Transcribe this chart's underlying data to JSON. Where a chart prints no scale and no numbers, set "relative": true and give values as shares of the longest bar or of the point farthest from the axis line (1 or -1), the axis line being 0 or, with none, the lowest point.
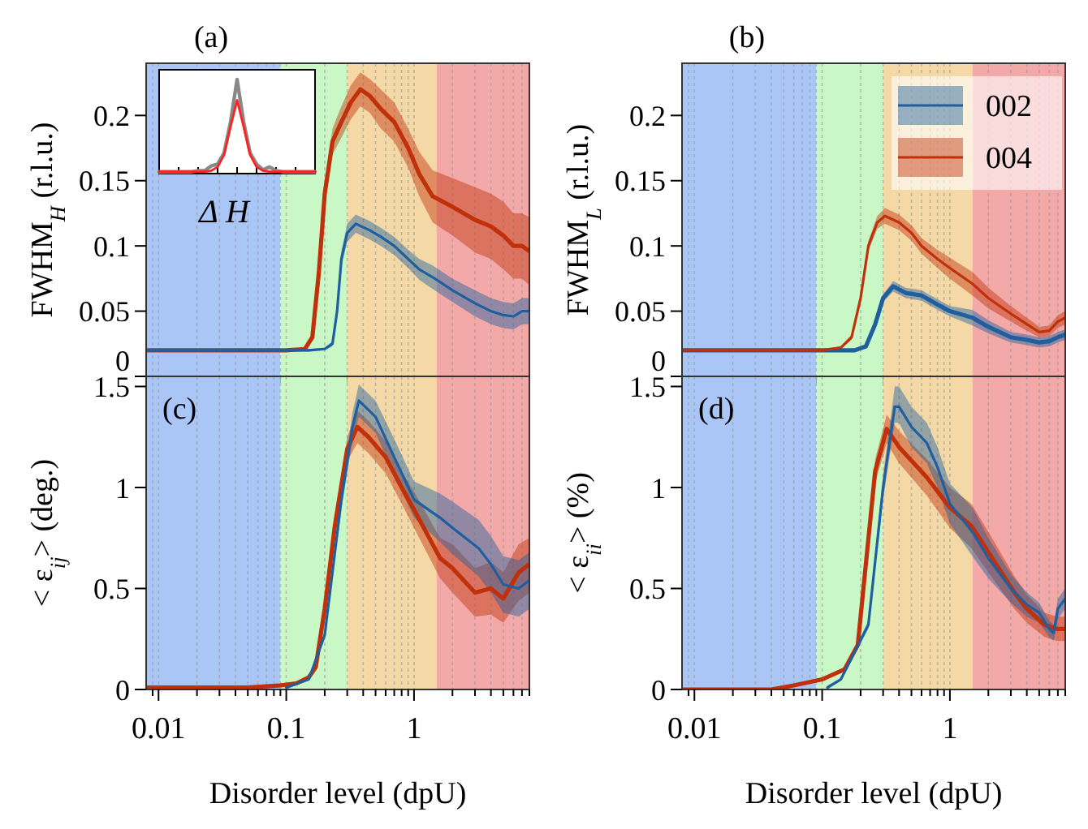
{
  "chart_data": [
    {
      "type": "line",
      "title": "(a)",
      "ylabel": "FWHM$_{H}$ (r.l.u.)",
      "xlim": [
        0.008,
        8
      ],
      "ylim": [
        0,
        0.24
      ],
      "log": "x",
      "grid": "x",
      "legend": false,
      "tick_labels": "y",
      "xticks": [
        {
          "value": 0.009,
          "label": null
        },
        0.01,
        {
          "value": 0.02,
          "label": null
        },
        {
          "value": 0.03,
          "label": null
        },
        {
          "value": 0.04,
          "label": null
        },
        {
          "value": 0.05,
          "label": null
        },
        {
          "value": 0.06,
          "label": null
        },
        {
          "value": 0.07,
          "label": null
        },
        {
          "value": 0.08,
          "label": null
        },
        {
          "value": 0.09,
          "label": null
        },
        0.1,
        {
          "value": 0.2,
          "label": null
        },
        {
          "value": 0.3,
          "label": null
        },
        {
          "value": 0.4,
          "label": null
        },
        {
          "value": 0.5,
          "label": null
        },
        {
          "value": 0.6,
          "label": null
        },
        {
          "value": 0.7,
          "label": null
        },
        {
          "value": 0.8,
          "label": null
        },
        {
          "value": 0.9,
          "label": null
        },
        1,
        {
          "value": 2,
          "label": null
        },
        {
          "value": 3,
          "label": null
        },
        {
          "value": 4,
          "label": null
        },
        {
          "value": 5,
          "label": null
        },
        {
          "value": 6,
          "label": null
        },
        {
          "value": 7,
          "label": null
        },
        {
          "value": 8,
          "label": null
        }
      ],
      "yticks": [
        0,
        0.05,
        0.1,
        0.15,
        0.2
      ],
      "bands": [
        {
          "axis": "x",
          "from": 0.008,
          "to": 0.09,
          "color": "#a9c6f7"
        },
        {
          "axis": "x",
          "from": 0.09,
          "to": 0.3,
          "color": "#c9f7c5"
        },
        {
          "axis": "x",
          "from": 0.3,
          "to": 1.5,
          "color": "#f4d9a6"
        },
        {
          "axis": "x",
          "from": 1.5,
          "to": 8,
          "color": "#f2a9a7"
        }
      ],
      "series": [
        {
          "color": "#c0300a",
          "x": [
            0.008,
            0.1,
            0.14,
            0.16,
            0.18,
            0.2,
            0.23,
            0.27,
            0.32,
            0.38,
            0.45,
            0.55,
            0.7,
            0.9,
            1.1,
            1.4,
            2,
            3,
            4,
            5,
            6,
            7,
            8
          ],
          "values": [
            0.02,
            0.02,
            0.021,
            0.03,
            0.08,
            0.14,
            0.18,
            0.195,
            0.21,
            0.22,
            0.215,
            0.205,
            0.195,
            0.175,
            0.155,
            0.138,
            0.13,
            0.12,
            0.115,
            0.108,
            0.1,
            0.1,
            0.096
          ],
          "lower": [
            0.019,
            0.019,
            0.02,
            0.028,
            0.075,
            0.132,
            0.17,
            0.183,
            0.197,
            0.207,
            0.202,
            0.19,
            0.18,
            0.16,
            0.138,
            0.118,
            0.108,
            0.095,
            0.09,
            0.082,
            0.075,
            0.075,
            0.07
          ],
          "upper": [
            0.021,
            0.021,
            0.022,
            0.032,
            0.085,
            0.148,
            0.19,
            0.207,
            0.223,
            0.233,
            0.228,
            0.22,
            0.21,
            0.19,
            0.172,
            0.158,
            0.152,
            0.145,
            0.14,
            0.134,
            0.125,
            0.125,
            0.122
          ]
        },
        {
          "color": "#1f5fa0",
          "x": [
            0.008,
            0.15,
            0.2,
            0.23,
            0.25,
            0.27,
            0.3,
            0.35,
            0.45,
            0.55,
            0.7,
            0.9,
            1.1,
            1.4,
            2,
            3,
            4,
            5,
            6,
            7,
            8
          ],
          "values": [
            0.02,
            0.02,
            0.021,
            0.025,
            0.05,
            0.09,
            0.11,
            0.117,
            0.112,
            0.107,
            0.1,
            0.09,
            0.082,
            0.076,
            0.066,
            0.056,
            0.05,
            0.047,
            0.046,
            0.05,
            0.05
          ],
          "lower": [
            0.019,
            0.019,
            0.02,
            0.023,
            0.046,
            0.084,
            0.103,
            0.11,
            0.105,
            0.1,
            0.093,
            0.083,
            0.074,
            0.067,
            0.057,
            0.046,
            0.04,
            0.037,
            0.036,
            0.04,
            0.04
          ],
          "upper": [
            0.021,
            0.021,
            0.022,
            0.027,
            0.054,
            0.096,
            0.117,
            0.124,
            0.119,
            0.114,
            0.107,
            0.097,
            0.09,
            0.085,
            0.075,
            0.066,
            0.06,
            0.057,
            0.056,
            0.06,
            0.06
          ]
        }
      ]
    },
    {
      "type": "line",
      "title": "(b)",
      "ylabel": "FWHM$_{L}$ (r.l.u.)",
      "xlim": [
        0.008,
        8
      ],
      "ylim": [
        0,
        0.24
      ],
      "log": "x",
      "grid": "x",
      "legend": "top right",
      "tick_labels": "y",
      "xticks": [
        {
          "value": 0.009,
          "label": null
        },
        0.01,
        {
          "value": 0.02,
          "label": null
        },
        {
          "value": 0.03,
          "label": null
        },
        {
          "value": 0.04,
          "label": null
        },
        {
          "value": 0.05,
          "label": null
        },
        {
          "value": 0.06,
          "label": null
        },
        {
          "value": 0.07,
          "label": null
        },
        {
          "value": 0.08,
          "label": null
        },
        {
          "value": 0.09,
          "label": null
        },
        0.1,
        {
          "value": 0.2,
          "label": null
        },
        {
          "value": 0.3,
          "label": null
        },
        {
          "value": 0.4,
          "label": null
        },
        {
          "value": 0.5,
          "label": null
        },
        {
          "value": 0.6,
          "label": null
        },
        {
          "value": 0.7,
          "label": null
        },
        {
          "value": 0.8,
          "label": null
        },
        {
          "value": 0.9,
          "label": null
        },
        1,
        {
          "value": 2,
          "label": null
        },
        {
          "value": 3,
          "label": null
        },
        {
          "value": 4,
          "label": null
        },
        {
          "value": 5,
          "label": null
        },
        {
          "value": 6,
          "label": null
        },
        {
          "value": 7,
          "label": null
        },
        {
          "value": 8,
          "label": null
        }
      ],
      "yticks": [
        0,
        0.05,
        0.1,
        0.15,
        0.2
      ],
      "bands": [
        {
          "axis": "x",
          "from": 0.008,
          "to": 0.09,
          "color": "#a9c6f7"
        },
        {
          "axis": "x",
          "from": 0.09,
          "to": 0.3,
          "color": "#c9f7c5"
        },
        {
          "axis": "x",
          "from": 0.3,
          "to": 1.5,
          "color": "#f4d9a6"
        },
        {
          "axis": "x",
          "from": 1.5,
          "to": 8,
          "color": "#f2a9a7"
        }
      ],
      "series": [
        {
          "name": "002",
          "color": "#1f5fa0",
          "x": [
            0.008,
            0.18,
            0.22,
            0.26,
            0.3,
            0.36,
            0.45,
            0.6,
            0.8,
            1,
            1.5,
            2,
            3,
            4,
            5,
            6,
            7,
            8
          ],
          "values": [
            0.02,
            0.02,
            0.023,
            0.04,
            0.06,
            0.069,
            0.064,
            0.062,
            0.055,
            0.05,
            0.045,
            0.038,
            0.03,
            0.028,
            0.026,
            0.027,
            0.03,
            0.032
          ],
          "lower": [
            0.019,
            0.019,
            0.022,
            0.038,
            0.057,
            0.065,
            0.06,
            0.058,
            0.051,
            0.046,
            0.039,
            0.033,
            0.026,
            0.024,
            0.022,
            0.023,
            0.026,
            0.028
          ],
          "upper": [
            0.021,
            0.021,
            0.024,
            0.042,
            0.063,
            0.073,
            0.068,
            0.066,
            0.059,
            0.054,
            0.051,
            0.043,
            0.034,
            0.032,
            0.03,
            0.031,
            0.034,
            0.036
          ]
        },
        {
          "name": "004",
          "color": "#c0300a",
          "x": [
            0.008,
            0.1,
            0.14,
            0.17,
            0.2,
            0.23,
            0.27,
            0.31,
            0.4,
            0.5,
            0.6,
            0.8,
            1,
            1.5,
            2,
            3,
            4,
            5,
            6,
            7,
            8
          ],
          "values": [
            0.02,
            0.02,
            0.022,
            0.03,
            0.06,
            0.1,
            0.118,
            0.123,
            0.118,
            0.11,
            0.1,
            0.09,
            0.083,
            0.071,
            0.06,
            0.048,
            0.04,
            0.034,
            0.035,
            0.042,
            0.045
          ],
          "lower": [
            0.019,
            0.019,
            0.021,
            0.028,
            0.057,
            0.096,
            0.113,
            0.117,
            0.112,
            0.104,
            0.094,
            0.083,
            0.075,
            0.062,
            0.052,
            0.042,
            0.035,
            0.03,
            0.031,
            0.037,
            0.04
          ],
          "upper": [
            0.021,
            0.021,
            0.023,
            0.032,
            0.063,
            0.104,
            0.123,
            0.129,
            0.124,
            0.116,
            0.106,
            0.097,
            0.091,
            0.08,
            0.068,
            0.054,
            0.045,
            0.038,
            0.039,
            0.047,
            0.05
          ]
        }
      ]
    },
    {
      "type": "line",
      "title": "(c)",
      "xlabel": "Disorder level (dpU)",
      "ylabel": "< ε$_{ij}$> (deg.)",
      "xlim": [
        0.008,
        8
      ],
      "ylim": [
        0,
        1.55
      ],
      "log": "x",
      "grid": "x",
      "legend": false,
      "xticks": [
        {
          "value": 0.009,
          "label": null
        },
        0.01,
        {
          "value": 0.02,
          "label": null
        },
        {
          "value": 0.03,
          "label": null
        },
        {
          "value": 0.04,
          "label": null
        },
        {
          "value": 0.05,
          "label": null
        },
        {
          "value": 0.06,
          "label": null
        },
        {
          "value": 0.07,
          "label": null
        },
        {
          "value": 0.08,
          "label": null
        },
        {
          "value": 0.09,
          "label": null
        },
        0.1,
        {
          "value": 0.2,
          "label": null
        },
        {
          "value": 0.3,
          "label": null
        },
        {
          "value": 0.4,
          "label": null
        },
        {
          "value": 0.5,
          "label": null
        },
        {
          "value": 0.6,
          "label": null
        },
        {
          "value": 0.7,
          "label": null
        },
        {
          "value": 0.8,
          "label": null
        },
        {
          "value": 0.9,
          "label": null
        },
        1,
        {
          "value": 2,
          "label": null
        },
        {
          "value": 3,
          "label": null
        },
        {
          "value": 4,
          "label": null
        },
        {
          "value": 5,
          "label": null
        },
        {
          "value": 6,
          "label": null
        },
        {
          "value": 7,
          "label": null
        },
        {
          "value": 8,
          "label": null
        }
      ],
      "yticks": [
        0,
        0.5,
        1,
        1.5
      ],
      "bands": [
        {
          "axis": "x",
          "from": 0.008,
          "to": 0.09,
          "color": "#a9c6f7"
        },
        {
          "axis": "x",
          "from": 0.09,
          "to": 0.3,
          "color": "#c9f7c5"
        },
        {
          "axis": "x",
          "from": 0.3,
          "to": 1.5,
          "color": "#f4d9a6"
        },
        {
          "axis": "x",
          "from": 1.5,
          "to": 8,
          "color": "#f2a9a7"
        }
      ],
      "series": [
        {
          "color": "#c0300a",
          "x": [
            0.008,
            0.01,
            0.05,
            0.09,
            0.12,
            0.15,
            0.17,
            0.2,
            0.24,
            0.3,
            0.36,
            0.44,
            0.6,
            0.8,
            1,
            1.6,
            2,
            3,
            4,
            5,
            6.6,
            8
          ],
          "values": [
            0.01,
            0.01,
            0.01,
            0.02,
            0.03,
            0.06,
            0.11,
            0.4,
            0.81,
            1.19,
            1.3,
            1.25,
            1.15,
            1.0,
            0.89,
            0.65,
            0.6,
            0.48,
            0.5,
            0.45,
            0.58,
            0.62
          ],
          "lower": [
            0,
            0,
            0,
            0.01,
            0.02,
            0.05,
            0.1,
            0.37,
            0.77,
            1.13,
            1.22,
            1.17,
            1.07,
            0.92,
            0.8,
            0.55,
            0.48,
            0.36,
            0.37,
            0.33,
            0.44,
            0.48
          ],
          "upper": [
            0.02,
            0.02,
            0.02,
            0.03,
            0.04,
            0.07,
            0.12,
            0.43,
            0.85,
            1.25,
            1.38,
            1.33,
            1.23,
            1.08,
            0.98,
            0.75,
            0.72,
            0.6,
            0.63,
            0.58,
            0.72,
            0.75
          ]
        },
        {
          "color": "#1f5fa0",
          "x": [
            0.1,
            0.15,
            0.2,
            0.27,
            0.33,
            0.37,
            0.5,
            0.7,
            1,
            1.6,
            2,
            3.2,
            4,
            5,
            6.6,
            8
          ],
          "values": [
            0.01,
            0.05,
            0.27,
            0.94,
            1.3,
            1.43,
            1.35,
            1.15,
            0.94,
            0.85,
            0.8,
            0.7,
            0.62,
            0.52,
            0.5,
            0.54
          ],
          "lower": [
            0,
            0.045,
            0.25,
            0.89,
            1.23,
            1.35,
            1.27,
            1.06,
            0.85,
            0.73,
            0.67,
            0.56,
            0.48,
            0.38,
            0.36,
            0.4
          ],
          "upper": [
            0.02,
            0.055,
            0.29,
            0.99,
            1.37,
            1.51,
            1.43,
            1.24,
            1.03,
            0.97,
            0.93,
            0.84,
            0.76,
            0.66,
            0.64,
            0.68
          ]
        }
      ]
    },
    {
      "type": "line",
      "title": "(d)",
      "xlabel": "Disorder level (dpU)",
      "ylabel": "< ε$_{ii}$> (%)",
      "xlim": [
        0.008,
        8
      ],
      "ylim": [
        0,
        1.55
      ],
      "log": "x",
      "grid": "x",
      "legend": false,
      "xticks": [
        {
          "value": 0.009,
          "label": null
        },
        0.01,
        {
          "value": 0.02,
          "label": null
        },
        {
          "value": 0.03,
          "label": null
        },
        {
          "value": 0.04,
          "label": null
        },
        {
          "value": 0.05,
          "label": null
        },
        {
          "value": 0.06,
          "label": null
        },
        {
          "value": 0.07,
          "label": null
        },
        {
          "value": 0.08,
          "label": null
        },
        {
          "value": 0.09,
          "label": null
        },
        0.1,
        {
          "value": 0.2,
          "label": null
        },
        {
          "value": 0.3,
          "label": null
        },
        {
          "value": 0.4,
          "label": null
        },
        {
          "value": 0.5,
          "label": null
        },
        {
          "value": 0.6,
          "label": null
        },
        {
          "value": 0.7,
          "label": null
        },
        {
          "value": 0.8,
          "label": null
        },
        {
          "value": 0.9,
          "label": null
        },
        1,
        {
          "value": 2,
          "label": null
        },
        {
          "value": 3,
          "label": null
        },
        {
          "value": 4,
          "label": null
        },
        {
          "value": 5,
          "label": null
        },
        {
          "value": 6,
          "label": null
        },
        {
          "value": 7,
          "label": null
        },
        {
          "value": 8,
          "label": null
        }
      ],
      "yticks": [
        0,
        0.5,
        1,
        1.5
      ],
      "bands": [
        {
          "axis": "x",
          "from": 0.008,
          "to": 0.09,
          "color": "#a9c6f7"
        },
        {
          "axis": "x",
          "from": 0.09,
          "to": 0.3,
          "color": "#c9f7c5"
        },
        {
          "axis": "x",
          "from": 0.3,
          "to": 1.5,
          "color": "#f4d9a6"
        },
        {
          "axis": "x",
          "from": 1.5,
          "to": 8,
          "color": "#f2a9a7"
        }
      ],
      "series": [
        {
          "color": "#c0300a",
          "x": [
            0.008,
            0.04,
            0.06,
            0.1,
            0.15,
            0.19,
            0.26,
            0.32,
            0.4,
            0.66,
            1,
            1.47,
            2,
            3.2,
            4,
            5.5,
            6.9,
            8
          ],
          "values": [
            0,
            0,
            0.02,
            0.05,
            0.1,
            0.22,
            1.08,
            1.29,
            1.2,
            1.05,
            0.9,
            0.81,
            0.68,
            0.48,
            0.4,
            0.32,
            0.3,
            0.3
          ],
          "lower": [
            0,
            0,
            0.018,
            0.046,
            0.094,
            0.2,
            1.02,
            1.22,
            1.12,
            0.96,
            0.8,
            0.7,
            0.58,
            0.4,
            0.33,
            0.26,
            0.24,
            0.24
          ],
          "upper": [
            0,
            0,
            0.022,
            0.054,
            0.106,
            0.24,
            1.14,
            1.36,
            1.28,
            1.14,
            1.0,
            0.92,
            0.78,
            0.56,
            0.47,
            0.38,
            0.36,
            0.36
          ]
        },
        {
          "color": "#1f5fa0",
          "x": [
            0.11,
            0.14,
            0.23,
            0.3,
            0.37,
            0.4,
            0.5,
            0.66,
            0.8,
            1,
            1.5,
            2,
            3,
            4,
            5,
            6,
            6.5,
            7,
            8
          ],
          "values": [
            0.01,
            0.05,
            0.32,
            1.0,
            1.4,
            1.4,
            1.3,
            1.22,
            1.1,
            0.92,
            0.78,
            0.65,
            0.5,
            0.42,
            0.38,
            0.3,
            0.28,
            0.4,
            0.45
          ],
          "lower": [
            0,
            0.045,
            0.3,
            0.94,
            1.32,
            1.32,
            1.2,
            1.12,
            1.0,
            0.82,
            0.66,
            0.55,
            0.43,
            0.36,
            0.33,
            0.26,
            0.24,
            0.35,
            0.4
          ],
          "upper": [
            0.02,
            0.055,
            0.34,
            1.06,
            1.5,
            1.5,
            1.4,
            1.32,
            1.2,
            1.02,
            0.9,
            0.75,
            0.57,
            0.48,
            0.43,
            0.34,
            0.32,
            0.45,
            0.5
          ]
        }
      ]
    },
    {
      "type": "line",
      "relative": true,
      "xlabel": "Δ H",
      "legend": false,
      "categories": [
        null,
        null,
        null,
        null,
        null,
        null,
        null,
        null,
        null,
        null,
        null,
        null,
        null,
        null,
        null,
        null,
        null,
        null,
        null,
        null,
        null,
        null,
        null,
        null,
        null
      ],
      "series": [
        {
          "color": "#888888",
          "values": [
            0.02,
            0.02,
            0.02,
            0.02,
            0.02,
            0.02,
            0.03,
            0.03,
            0.08,
            0.1,
            0.22,
            0.55,
            1,
            0.55,
            0.22,
            0.1,
            0.04,
            0.07,
            0.03,
            0.02,
            0.02,
            0.02,
            0.02,
            0.02,
            0.02
          ]
        },
        {
          "color": "#ff2020",
          "values": [
            0.02,
            0.02,
            0.02,
            0.02,
            0.02,
            0.02,
            0.02,
            0.02,
            0.03,
            0.07,
            0.2,
            0.5,
            0.78,
            0.5,
            0.2,
            0.07,
            0.03,
            0.02,
            0.02,
            0.02,
            0.02,
            0.02,
            0.02,
            0.02,
            0.02
          ]
        }
      ]
    }
  ]
}
